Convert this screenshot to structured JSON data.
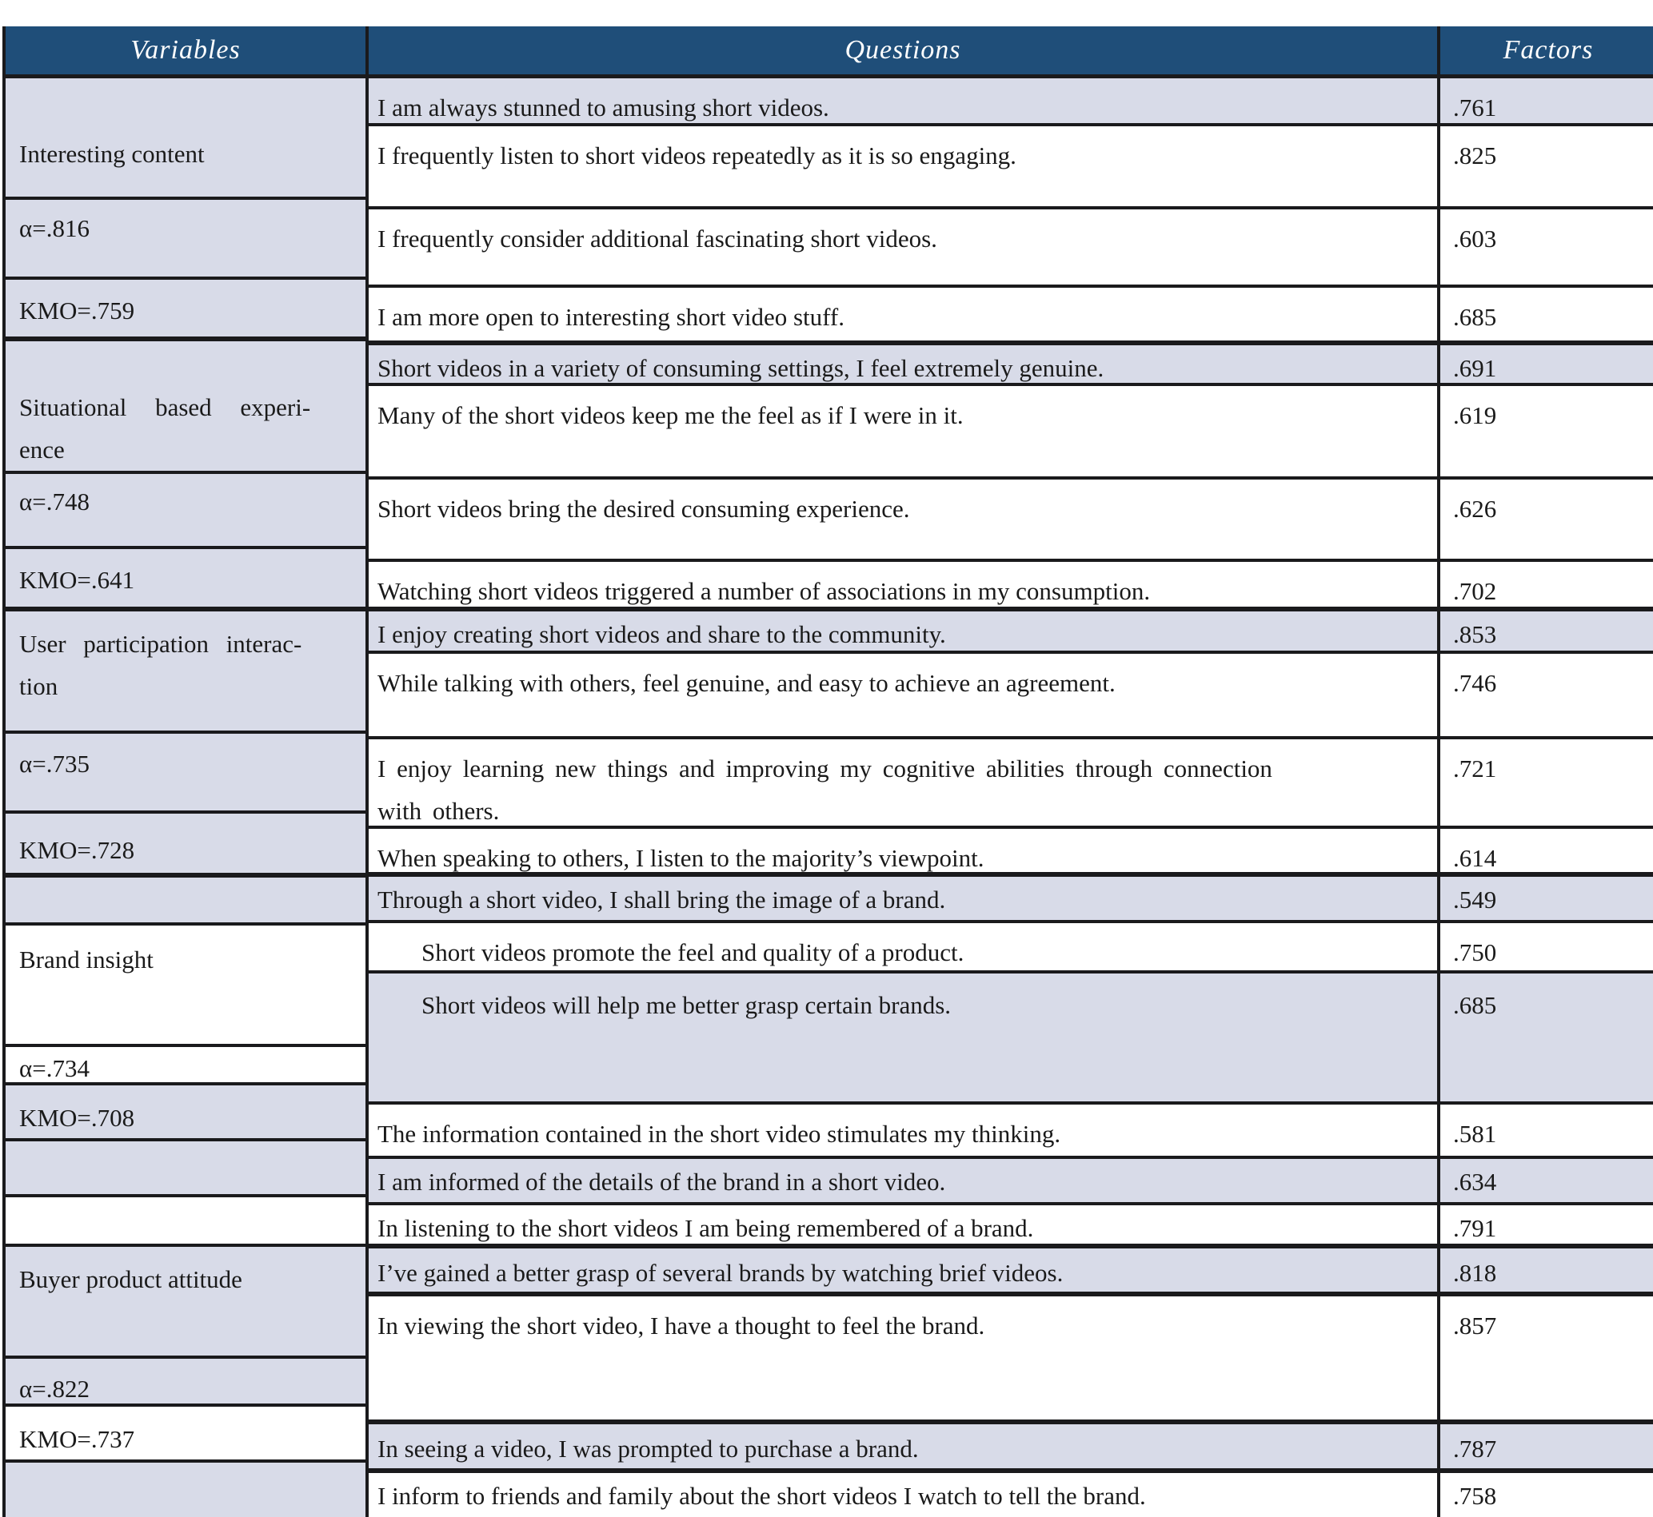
{
  "table": {
    "title_semantic": "Factor analysis of short-video survey items",
    "header": {
      "variables": "Variables",
      "questions": "Questions",
      "factors": "Factors"
    },
    "colors": {
      "header_bg": "#1f4e79",
      "header_text": "#ffffff",
      "row_lavender": "#d8dbe8",
      "row_white": "#ffffff",
      "border": "#1a1a1c",
      "body_text": "#1a1a1a"
    },
    "variables_cells": [
      {
        "text": "Interesting content",
        "h": 152,
        "bg": "l",
        "pt": 68
      },
      {
        "text": "α=.816",
        "h": 100,
        "bg": "l",
        "pt": 9
      },
      {
        "text": "KMO=.759",
        "h": 77,
        "bg": "l",
        "pt": 12,
        "thick": true
      },
      {
        "text": "Situational based experi-\nence",
        "h": 166,
        "bg": "l",
        "pt": 56,
        "ws": 28
      },
      {
        "text": "α=.748",
        "h": 94,
        "bg": "l",
        "pt": 8
      },
      {
        "text": "KMO=.641",
        "h": 78,
        "bg": "l",
        "pt": 12,
        "thick": true
      },
      {
        "text": "User participation interac-\ntion",
        "h": 153,
        "bg": "l",
        "pt": 14,
        "ws": 14
      },
      {
        "text": "α=.735",
        "h": 100,
        "bg": "l",
        "pt": 11
      },
      {
        "text": "KMO=.728",
        "h": 80,
        "bg": "l",
        "pt": 19,
        "thick": true
      },
      {
        "text": "",
        "h": 60,
        "bg": "l"
      },
      {
        "text": "Brand insight",
        "h": 152,
        "bg": "w",
        "pt": 16
      },
      {
        "text": "α=.734",
        "h": 48,
        "bg": "w",
        "pt": 0
      },
      {
        "text": "KMO=.708",
        "h": 70,
        "bg": "l",
        "pt": 14
      },
      {
        "text": "",
        "h": 70,
        "bg": "l"
      },
      {
        "text": "",
        "h": 62,
        "bg": "w"
      },
      {
        "text": "Buyer product attitude",
        "h": 140,
        "bg": "l",
        "pt": 14
      },
      {
        "text": "α=.822",
        "h": 60,
        "bg": "l",
        "pt": 11
      },
      {
        "text": "KMO=.737",
        "h": 70,
        "bg": "w",
        "pt": 14
      },
      {
        "text": "",
        "h": 68,
        "bg": "l",
        "last": true
      }
    ],
    "rows": [
      {
        "q": "I am always stunned to amusing short videos.",
        "f": ".761",
        "h": 60,
        "bg": "l"
      },
      {
        "q": "I frequently listen to short videos repeatedly as it is so engaging.",
        "f": ".825",
        "h": 104,
        "bg": "w"
      },
      {
        "q": "I frequently consider additional fascinating short videos.",
        "f": ".603",
        "h": 98,
        "bg": "w"
      },
      {
        "q": "I am more open to interesting short video stuff.",
        "f": ".685",
        "h": 72,
        "bg": "w",
        "thick": true
      },
      {
        "q": "Short videos in a variety of consuming settings, I feel extremely genuine.",
        "f": ".691",
        "h": 51,
        "bg": "l",
        "pt": 2
      },
      {
        "q": "Many of the short videos keep me the feel as if I were in it.",
        "f": ".619",
        "h": 117,
        "bg": "w"
      },
      {
        "q": "Short videos bring the desired consuming experience.",
        "f": ".626",
        "h": 103,
        "bg": "w"
      },
      {
        "q": "Watching short videos triggered a number of associations in my consumption.",
        "f": ".702",
        "h": 62,
        "bg": "w",
        "thick": true
      },
      {
        "q": "I enjoy creating short videos and share to the community.",
        "f": ".853",
        "h": 53,
        "bg": "l",
        "pt": 2
      },
      {
        "q": "While talking with others, feel genuine, and easy to achieve an agreement.",
        "f": ".746",
        "h": 107,
        "bg": "w"
      },
      {
        "q": "I enjoy learning new things and improving my cognitive abilities through connection\nwith others.",
        "f": ".721",
        "h": 112,
        "bg": "w",
        "ws": 6
      },
      {
        "q": "When speaking to others, I listen to the majority’s viewpoint.",
        "f": ".614",
        "h": 60,
        "bg": "w",
        "thick": true
      },
      {
        "q": "Through a short video, I shall bring the image of a brand.",
        "f": ".549",
        "h": 58,
        "bg": "l",
        "pt": 2
      },
      {
        "q": "Short videos promote the feel and quality of a product.",
        "f": ".750",
        "h": 63,
        "bg": "w",
        "indent": true
      },
      {
        "q": "Short videos will help me better grasp certain brands.",
        "f": ".685",
        "h": 164,
        "bg": "l",
        "indent": true,
        "pt": 13
      },
      {
        "q": "The information contained in the short video stimulates my thinking.",
        "f": ".581",
        "h": 68,
        "bg": "w"
      },
      {
        "q": "I am informed of the details of the brand in a short video.",
        "f": ".634",
        "h": 58,
        "bg": "l",
        "pt": 2
      },
      {
        "q": "In listening to the short videos I am being remembered of a brand.",
        "f": ".791",
        "h": 54,
        "bg": "w",
        "pt": 2,
        "thick": true
      },
      {
        "q": "I’ve gained a better grasp of several brands by watching brief videos.",
        "f": ".818",
        "h": 60,
        "bg": "l",
        "pt": 4,
        "thick": true
      },
      {
        "q": "In viewing the short video, I have a thought to feel the brand.",
        "f": ".857",
        "h": 160,
        "bg": "w",
        "thick": true
      },
      {
        "q": "In seeing a video, I was prompted to purchase a brand.",
        "f": ".787",
        "h": 61,
        "bg": "l",
        "pt": 4,
        "thick": true
      },
      {
        "q": "I inform to friends and family about the short videos I watch to tell the brand.",
        "f": ".758",
        "h": 55,
        "bg": "w",
        "pt": 2,
        "last": true
      }
    ]
  }
}
